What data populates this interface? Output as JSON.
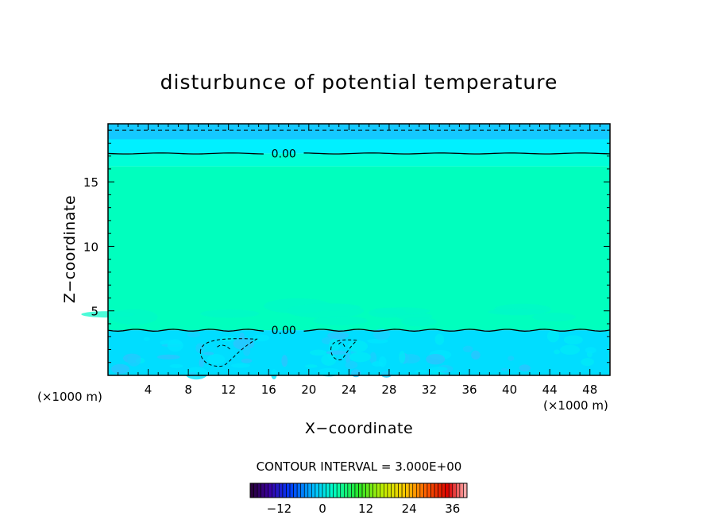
{
  "chart_data": {
    "type": "heatmap",
    "title": "disturbunce of potential temperature",
    "xlabel": "X−coordinate",
    "ylabel": "Z−coordinate",
    "x_unit": "(×1000 m)",
    "y_unit": "(×1000 m)",
    "xlim": [
      0,
      50
    ],
    "ylim": [
      0,
      19.5
    ],
    "x_ticks": [
      4,
      8,
      12,
      16,
      20,
      24,
      28,
      32,
      36,
      40,
      44,
      48
    ],
    "y_ticks": [
      5,
      10,
      15
    ],
    "x_tick_labels": [
      "4",
      "8",
      "12",
      "16",
      "20",
      "24",
      "28",
      "32",
      "36",
      "40",
      "44",
      "48"
    ],
    "y_tick_labels": [
      "5",
      "10",
      "15"
    ],
    "contour_interval_text": "CONTOUR INTERVAL = 3.000E+00",
    "contour_interval": 3.0,
    "contour_label": "0.00",
    "zero_contours": [
      {
        "z": 17.2,
        "label_at_x": 17.5
      },
      {
        "z": 3.5,
        "label_at_x": 17.5
      }
    ],
    "dashed_contours": [
      {
        "z": 19.0,
        "x_range": [
          0,
          50
        ]
      },
      {
        "region": "blob",
        "x_range": [
          9.2,
          14.8
        ],
        "z_range": [
          0.7,
          2.9
        ]
      },
      {
        "region": "blob",
        "x_range": [
          22.2,
          24.8
        ],
        "z_range": [
          1.2,
          2.8
        ]
      }
    ],
    "bands": [
      {
        "z": [
          18.3,
          19.5
        ],
        "color": "#14c8ff"
      },
      {
        "z": [
          17.2,
          18.3
        ],
        "color": "#00f0ff"
      },
      {
        "z": [
          16.2,
          17.2
        ],
        "color": "#00ffd8"
      },
      {
        "z": [
          3.5,
          16.2
        ],
        "color": "#00ffbe"
      },
      {
        "z": [
          0,
          3.5
        ],
        "color": "#00ddff"
      }
    ],
    "colorbar": {
      "min": -20,
      "max": 40,
      "tick_values": [
        -12,
        0,
        12,
        24,
        36
      ],
      "tick_labels": [
        "−12",
        "0",
        "12",
        "24",
        "36"
      ]
    },
    "grid": false,
    "legend": "none"
  }
}
